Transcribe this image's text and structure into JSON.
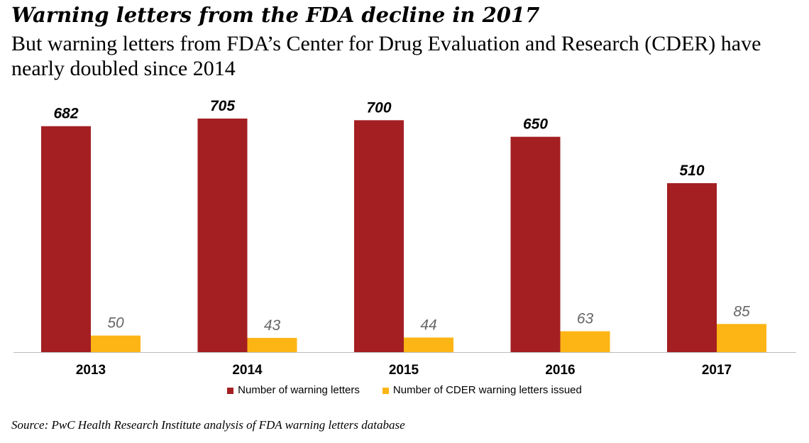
{
  "title": "Warning letters from the FDA decline in 2017",
  "subtitle": "But warning letters from FDA’s Center for Drug Evaluation and Research (CDER) have nearly doubled since 2014",
  "source": "Source: PwC Health Research Institute analysis of FDA warning letters database",
  "colors": {
    "series_a": "#A31F22",
    "series_b": "#FDB515",
    "axis": "#BDBDBD"
  },
  "chart_data": {
    "type": "bar",
    "title": "",
    "xlabel": "",
    "ylabel": "",
    "ylim": [
      0,
      705
    ],
    "grid": false,
    "legend_position": "bottom",
    "categories": [
      "2013",
      "2014",
      "2015",
      "2016",
      "2017"
    ],
    "series": [
      {
        "name": "Number of warning letters",
        "values": [
          682,
          705,
          700,
          650,
          510
        ]
      },
      {
        "name": "Number of CDER warning letters issued",
        "values": [
          50,
          43,
          44,
          63,
          85
        ]
      }
    ]
  }
}
